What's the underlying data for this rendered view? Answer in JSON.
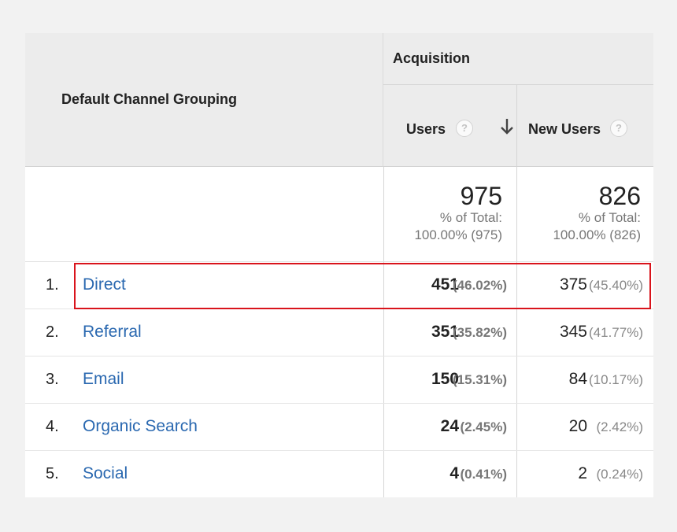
{
  "header": {
    "dimension_label": "Default Channel Grouping",
    "group_label": "Acquisition",
    "columns": [
      {
        "label": "Users",
        "help": "?"
      },
      {
        "label": "New Users",
        "help": "?"
      }
    ]
  },
  "totals": {
    "users": {
      "value": "975",
      "line1": "% of Total:",
      "line2": "100.00% (975)"
    },
    "new_users": {
      "value": "826",
      "line1": "% of Total:",
      "line2": "100.00% (826)"
    }
  },
  "rows": [
    {
      "rank": "1.",
      "channel": "Direct",
      "users": "451",
      "users_pct": "(46.02%)",
      "new_users": "375",
      "new_users_pct": "(45.40%)"
    },
    {
      "rank": "2.",
      "channel": "Referral",
      "users": "351",
      "users_pct": "(35.82%)",
      "new_users": "345",
      "new_users_pct": "(41.77%)"
    },
    {
      "rank": "3.",
      "channel": "Email",
      "users": "150",
      "users_pct": "(15.31%)",
      "new_users": "84",
      "new_users_pct": "(10.17%)"
    },
    {
      "rank": "4.",
      "channel": "Organic Search",
      "users": "24",
      "users_pct": "(2.45%)",
      "new_users": "20",
      "new_users_pct": "(2.42%)"
    },
    {
      "rank": "5.",
      "channel": "Social",
      "users": "4",
      "users_pct": "(0.41%)",
      "new_users": "2",
      "new_users_pct": "(0.24%)"
    }
  ],
  "colors": {
    "link": "#2a68b0",
    "highlight": "#d9141c",
    "header_bg": "#ececec"
  },
  "icons": {
    "help": "help-circle-icon",
    "sort": "arrow-down-icon"
  }
}
